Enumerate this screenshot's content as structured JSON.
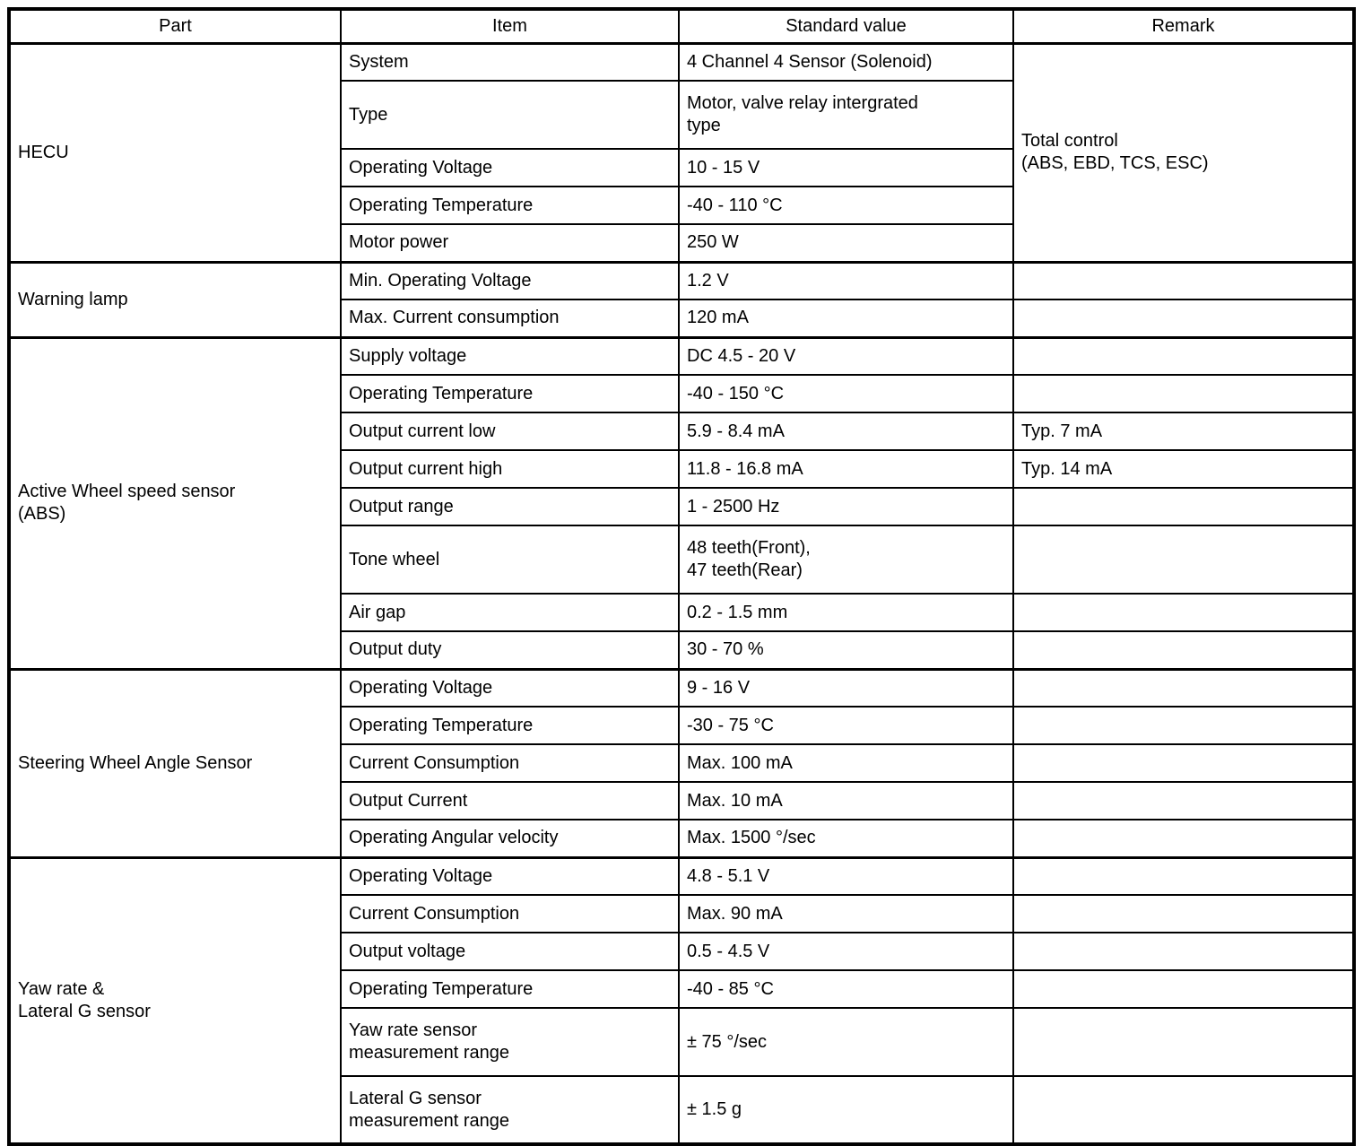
{
  "table": {
    "headers": [
      "Part",
      "Item",
      "Standard value",
      "Remark"
    ],
    "sections": [
      {
        "part": "HECU",
        "remark_merged": true,
        "remark": "Total control\n(ABS, EBD, TCS, ESC)",
        "rows": [
          {
            "item": "System",
            "value": "4 Channel 4 Sensor (Solenoid)",
            "remark": ""
          },
          {
            "item": "Type",
            "value": "Motor, valve relay intergrated\ntype",
            "remark": ""
          },
          {
            "item": "Operating Voltage",
            "value": "10 - 15 V",
            "remark": ""
          },
          {
            "item": "Operating Temperature",
            "value": "-40 - 110 °C",
            "remark": ""
          },
          {
            "item": "Motor power",
            "value": "250 W",
            "remark": ""
          }
        ]
      },
      {
        "part": "Warning lamp",
        "remark_merged": false,
        "remark": "",
        "rows": [
          {
            "item": "Min. Operating Voltage",
            "value": "1.2 V",
            "remark": ""
          },
          {
            "item": "Max. Current consumption",
            "value": "120 mA",
            "remark": ""
          }
        ]
      },
      {
        "part": "Active Wheel speed sensor\n(ABS)",
        "remark_merged": false,
        "remark": "",
        "rows": [
          {
            "item": "Supply voltage",
            "value": "DC 4.5 - 20 V",
            "remark": ""
          },
          {
            "item": "Operating Temperature",
            "value": "-40 - 150 °C",
            "remark": ""
          },
          {
            "item": "Output current low",
            "value": "5.9 - 8.4 mA",
            "remark": "Typ. 7 mA"
          },
          {
            "item": "Output current high",
            "value": "11.8 - 16.8 mA",
            "remark": "Typ. 14 mA"
          },
          {
            "item": "Output range",
            "value": "1 - 2500 Hz",
            "remark": ""
          },
          {
            "item": "Tone wheel",
            "value": "48 teeth(Front),\n47 teeth(Rear)",
            "remark": ""
          },
          {
            "item": "Air gap",
            "value": "0.2 - 1.5 mm",
            "remark": ""
          },
          {
            "item": "Output duty",
            "value": "30 - 70 %",
            "remark": ""
          }
        ]
      },
      {
        "part": "Steering Wheel Angle Sensor",
        "remark_merged": false,
        "remark": "",
        "rows": [
          {
            "item": "Operating Voltage",
            "value": "9 - 16 V",
            "remark": ""
          },
          {
            "item": "Operating Temperature",
            "value": "-30 - 75 °C",
            "remark": ""
          },
          {
            "item": "Current Consumption",
            "value": "Max. 100 mA",
            "remark": ""
          },
          {
            "item": "Output Current",
            "value": "Max. 10 mA",
            "remark": ""
          },
          {
            "item": "Operating Angular velocity",
            "value": "Max. 1500 °/sec",
            "remark": ""
          }
        ]
      },
      {
        "part": "Yaw rate &\nLateral G sensor",
        "remark_merged": false,
        "remark": "",
        "rows": [
          {
            "item": "Operating Voltage",
            "value": "4.8 - 5.1 V",
            "remark": ""
          },
          {
            "item": "Current Consumption",
            "value": "Max. 90 mA",
            "remark": ""
          },
          {
            "item": "Output voltage",
            "value": "0.5 - 4.5 V",
            "remark": ""
          },
          {
            "item": "Operating Temperature",
            "value": "-40 - 85 °C",
            "remark": ""
          },
          {
            "item": "Yaw rate sensor\nmeasurement range",
            "value": "± 75 °/sec",
            "remark": ""
          },
          {
            "item": "Lateral G sensor\nmeasurement range",
            "value": "± 1.5 g",
            "remark": ""
          }
        ]
      }
    ]
  }
}
